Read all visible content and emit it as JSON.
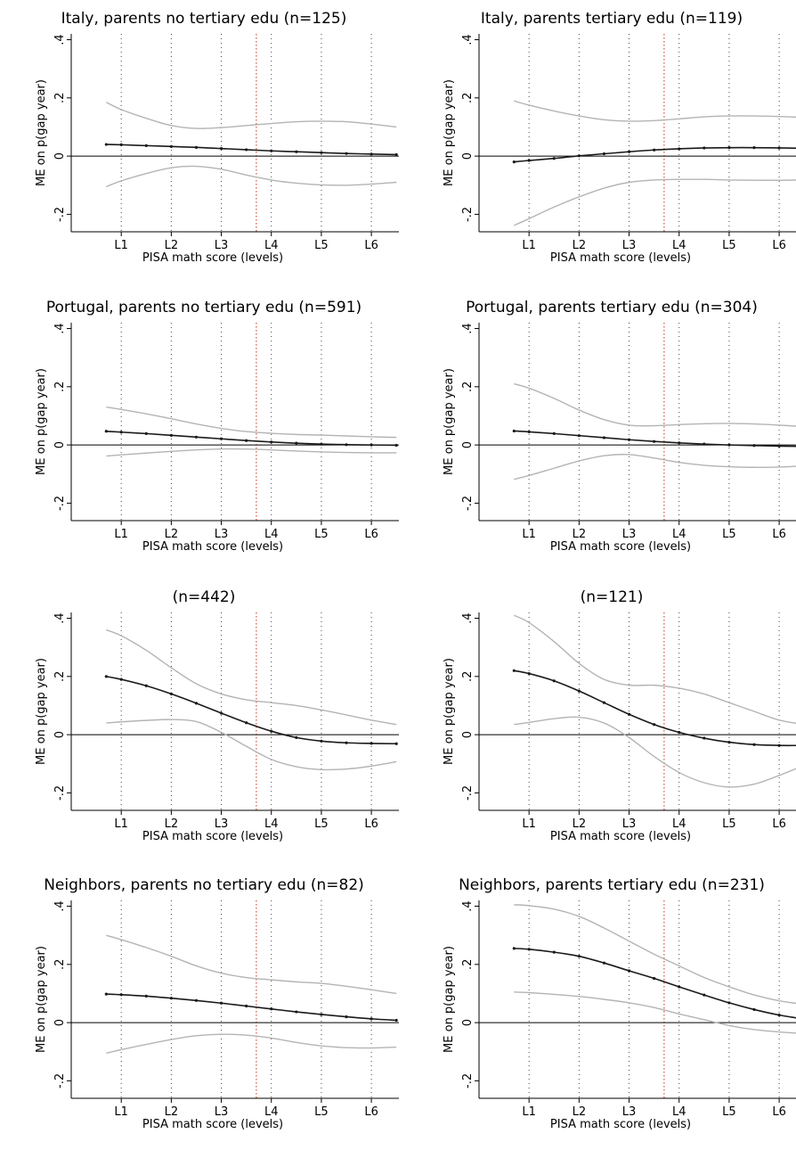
{
  "colors": {
    "estimate": "#1a1a1a",
    "ci": "#b4b4b4",
    "zero_line": "#000000",
    "grid": "#444444",
    "threshold": "#d2523a"
  },
  "chart_data": [
    {
      "type": "line",
      "title": "Italy, parents no tertiary edu (n=125)",
      "xlabel": "PISA math score (levels)",
      "ylabel": "ME on p(gap year)",
      "x_ticks": [
        "L1",
        "L2",
        "L3",
        "L4",
        "L5",
        "L6"
      ],
      "y_ticks": [
        ".4",
        ".2",
        "0",
        "-.2"
      ],
      "ylim": [
        -0.26,
        0.42
      ],
      "xlim": [
        0.0,
        6.55
      ],
      "grid_x": [
        1,
        2,
        3,
        4,
        5,
        6
      ],
      "threshold_x": 3.7,
      "x": [
        0.7,
        1.0,
        1.5,
        2.0,
        2.5,
        3.0,
        3.5,
        4.0,
        4.5,
        5.0,
        5.5,
        6.0,
        6.5
      ],
      "series": [
        {
          "role": "estimate",
          "values": [
            0.04,
            0.039,
            0.036,
            0.033,
            0.03,
            0.026,
            0.022,
            0.018,
            0.015,
            0.012,
            0.009,
            0.007,
            0.005
          ]
        },
        {
          "role": "upper_ci",
          "values": [
            0.185,
            0.16,
            0.13,
            0.105,
            0.095,
            0.098,
            0.105,
            0.112,
            0.118,
            0.12,
            0.118,
            0.11,
            0.1
          ]
        },
        {
          "role": "lower_ci",
          "values": [
            -0.105,
            -0.085,
            -0.06,
            -0.04,
            -0.035,
            -0.045,
            -0.065,
            -0.082,
            -0.093,
            -0.099,
            -0.1,
            -0.096,
            -0.09
          ]
        }
      ]
    },
    {
      "type": "line",
      "title": "Italy, parents tertiary edu (n=119)",
      "xlabel": "PISA math score (levels)",
      "ylabel": "ME on p(gap year)",
      "x_ticks": [
        "L1",
        "L2",
        "L3",
        "L4",
        "L5",
        "L6"
      ],
      "y_ticks": [
        ".4",
        ".2",
        "0",
        "-.2"
      ],
      "ylim": [
        -0.26,
        0.42
      ],
      "xlim": [
        0.0,
        6.55
      ],
      "grid_x": [
        1,
        2,
        3,
        4,
        5,
        6
      ],
      "threshold_x": 3.7,
      "x": [
        0.7,
        1.0,
        1.5,
        2.0,
        2.5,
        3.0,
        3.5,
        4.0,
        4.5,
        5.0,
        5.5,
        6.0,
        6.5
      ],
      "series": [
        {
          "role": "estimate",
          "values": [
            -0.02,
            -0.015,
            -0.008,
            0.001,
            0.008,
            0.015,
            0.021,
            0.025,
            0.028,
            0.029,
            0.029,
            0.028,
            0.027
          ]
        },
        {
          "role": "upper_ci",
          "values": [
            0.19,
            0.175,
            0.155,
            0.138,
            0.125,
            0.12,
            0.122,
            0.128,
            0.135,
            0.138,
            0.138,
            0.136,
            0.133
          ]
        },
        {
          "role": "lower_ci",
          "values": [
            -0.238,
            -0.215,
            -0.175,
            -0.14,
            -0.11,
            -0.09,
            -0.082,
            -0.08,
            -0.08,
            -0.082,
            -0.083,
            -0.083,
            -0.082
          ]
        }
      ]
    },
    {
      "type": "line",
      "title": "Portugal, parents no tertiary edu (n=591)",
      "xlabel": "PISA math score (levels)",
      "ylabel": "ME on p(gap year)",
      "x_ticks": [
        "L1",
        "L2",
        "L3",
        "L4",
        "L5",
        "L6"
      ],
      "y_ticks": [
        ".4",
        ".2",
        "0",
        "-.2"
      ],
      "ylim": [
        -0.26,
        0.42
      ],
      "xlim": [
        0.0,
        6.55
      ],
      "grid_x": [
        1,
        2,
        3,
        4,
        5,
        6
      ],
      "threshold_x": 3.7,
      "x": [
        0.7,
        1.0,
        1.5,
        2.0,
        2.5,
        3.0,
        3.5,
        4.0,
        4.5,
        5.0,
        5.5,
        6.0,
        6.5
      ],
      "series": [
        {
          "role": "estimate",
          "values": [
            0.047,
            0.044,
            0.039,
            0.033,
            0.027,
            0.021,
            0.015,
            0.01,
            0.006,
            0.003,
            0.001,
            0.0,
            -0.001
          ]
        },
        {
          "role": "upper_ci",
          "values": [
            0.13,
            0.122,
            0.107,
            0.09,
            0.072,
            0.057,
            0.046,
            0.04,
            0.036,
            0.034,
            0.031,
            0.028,
            0.026
          ]
        },
        {
          "role": "lower_ci",
          "values": [
            -0.038,
            -0.034,
            -0.028,
            -0.022,
            -0.017,
            -0.014,
            -0.014,
            -0.017,
            -0.021,
            -0.024,
            -0.026,
            -0.027,
            -0.027
          ]
        }
      ]
    },
    {
      "type": "line",
      "title": "Portugal, parents tertiary edu (n=304)",
      "xlabel": "PISA math score (levels)",
      "ylabel": "ME on p(gap year)",
      "x_ticks": [
        "L1",
        "L2",
        "L3",
        "L4",
        "L5",
        "L6"
      ],
      "y_ticks": [
        ".4",
        ".2",
        "0",
        "-.2"
      ],
      "ylim": [
        -0.26,
        0.42
      ],
      "xlim": [
        0.0,
        6.55
      ],
      "grid_x": [
        1,
        2,
        3,
        4,
        5,
        6
      ],
      "threshold_x": 3.7,
      "x": [
        0.7,
        1.0,
        1.5,
        2.0,
        2.5,
        3.0,
        3.5,
        4.0,
        4.5,
        5.0,
        5.5,
        6.0,
        6.5
      ],
      "series": [
        {
          "role": "estimate",
          "values": [
            0.048,
            0.045,
            0.039,
            0.032,
            0.025,
            0.018,
            0.012,
            0.007,
            0.003,
            0.0,
            -0.002,
            -0.004,
            -0.005
          ]
        },
        {
          "role": "upper_ci",
          "values": [
            0.21,
            0.195,
            0.16,
            0.12,
            0.087,
            0.068,
            0.066,
            0.07,
            0.073,
            0.074,
            0.072,
            0.068,
            0.063
          ]
        },
        {
          "role": "lower_ci",
          "values": [
            -0.118,
            -0.105,
            -0.08,
            -0.055,
            -0.037,
            -0.033,
            -0.045,
            -0.06,
            -0.07,
            -0.075,
            -0.077,
            -0.076,
            -0.072
          ]
        }
      ]
    },
    {
      "type": "line",
      "title": "(n=442)",
      "xlabel": "PISA math score (levels)",
      "ylabel": "ME on p(gap year)",
      "x_ticks": [
        "L1",
        "L2",
        "L3",
        "L4",
        "L5",
        "L6"
      ],
      "y_ticks": [
        ".4",
        ".2",
        "0",
        "-.2"
      ],
      "ylim": [
        -0.26,
        0.42
      ],
      "xlim": [
        0.0,
        6.55
      ],
      "grid_x": [
        1,
        2,
        3,
        4,
        5,
        6
      ],
      "threshold_x": 3.7,
      "x": [
        0.7,
        1.0,
        1.5,
        2.0,
        2.5,
        3.0,
        3.5,
        4.0,
        4.5,
        5.0,
        5.5,
        6.0,
        6.5
      ],
      "series": [
        {
          "role": "estimate",
          "values": [
            0.2,
            0.19,
            0.168,
            0.14,
            0.108,
            0.074,
            0.041,
            0.012,
            -0.01,
            -0.022,
            -0.028,
            -0.03,
            -0.031
          ]
        },
        {
          "role": "upper_ci",
          "values": [
            0.36,
            0.34,
            0.29,
            0.23,
            0.175,
            0.14,
            0.12,
            0.11,
            0.1,
            0.085,
            0.068,
            0.05,
            0.035
          ]
        },
        {
          "role": "lower_ci",
          "values": [
            0.04,
            0.044,
            0.049,
            0.052,
            0.045,
            0.008,
            -0.04,
            -0.085,
            -0.11,
            -0.12,
            -0.118,
            -0.108,
            -0.093
          ]
        }
      ]
    },
    {
      "type": "line",
      "title": "(n=121)",
      "xlabel": "PISA math score (levels)",
      "ylabel": "ME on p(gap year)",
      "x_ticks": [
        "L1",
        "L2",
        "L3",
        "L4",
        "L5",
        "L6"
      ],
      "y_ticks": [
        ".4",
        ".2",
        "0",
        "-.2"
      ],
      "ylim": [
        -0.26,
        0.42
      ],
      "xlim": [
        0.0,
        6.55
      ],
      "grid_x": [
        1,
        2,
        3,
        4,
        5,
        6
      ],
      "threshold_x": 3.7,
      "x": [
        0.7,
        1.0,
        1.5,
        2.0,
        2.5,
        3.0,
        3.5,
        4.0,
        4.5,
        5.0,
        5.5,
        6.0,
        6.5
      ],
      "series": [
        {
          "role": "estimate",
          "values": [
            0.22,
            0.21,
            0.185,
            0.15,
            0.11,
            0.07,
            0.035,
            0.008,
            -0.012,
            -0.026,
            -0.034,
            -0.037,
            -0.037
          ]
        },
        {
          "role": "upper_ci",
          "values": [
            0.41,
            0.385,
            0.32,
            0.245,
            0.19,
            0.17,
            0.17,
            0.16,
            0.14,
            0.11,
            0.08,
            0.05,
            0.035
          ]
        },
        {
          "role": "lower_ci",
          "values": [
            0.035,
            0.042,
            0.055,
            0.06,
            0.04,
            -0.01,
            -0.075,
            -0.13,
            -0.165,
            -0.18,
            -0.17,
            -0.14,
            -0.105
          ]
        }
      ]
    },
    {
      "type": "line",
      "title": "Neighbors, parents no tertiary edu (n=82)",
      "xlabel": "PISA math score (levels)",
      "ylabel": "ME on p(gap year)",
      "x_ticks": [
        "L1",
        "L2",
        "L3",
        "L4",
        "L5",
        "L6"
      ],
      "y_ticks": [
        ".4",
        ".2",
        "0",
        "-.2"
      ],
      "ylim": [
        -0.26,
        0.42
      ],
      "xlim": [
        0.0,
        6.55
      ],
      "grid_x": [
        1,
        2,
        3,
        4,
        5,
        6
      ],
      "threshold_x": 3.7,
      "x": [
        0.7,
        1.0,
        1.5,
        2.0,
        2.5,
        3.0,
        3.5,
        4.0,
        4.5,
        5.0,
        5.5,
        6.0,
        6.5
      ],
      "series": [
        {
          "role": "estimate",
          "values": [
            0.098,
            0.096,
            0.091,
            0.084,
            0.076,
            0.067,
            0.057,
            0.047,
            0.037,
            0.028,
            0.02,
            0.013,
            0.008
          ]
        },
        {
          "role": "upper_ci",
          "values": [
            0.3,
            0.285,
            0.258,
            0.228,
            0.195,
            0.17,
            0.155,
            0.147,
            0.14,
            0.135,
            0.125,
            0.113,
            0.1
          ]
        },
        {
          "role": "lower_ci",
          "values": [
            -0.105,
            -0.093,
            -0.075,
            -0.058,
            -0.045,
            -0.04,
            -0.043,
            -0.053,
            -0.068,
            -0.08,
            -0.086,
            -0.087,
            -0.084
          ]
        }
      ]
    },
    {
      "type": "line",
      "title": "Neighbors, parents tertiary edu (n=231)",
      "xlabel": "PISA math score (levels)",
      "ylabel": "ME on p(gap year)",
      "x_ticks": [
        "L1",
        "L2",
        "L3",
        "L4",
        "L5",
        "L6"
      ],
      "y_ticks": [
        ".4",
        ".2",
        "0",
        "-.2"
      ],
      "ylim": [
        -0.26,
        0.42
      ],
      "xlim": [
        0.0,
        6.55
      ],
      "grid_x": [
        1,
        2,
        3,
        4,
        5,
        6
      ],
      "threshold_x": 3.7,
      "x": [
        0.7,
        1.0,
        1.5,
        2.0,
        2.5,
        3.0,
        3.5,
        4.0,
        4.5,
        5.0,
        5.5,
        6.0,
        6.5
      ],
      "series": [
        {
          "role": "estimate",
          "values": [
            0.255,
            0.252,
            0.242,
            0.228,
            0.205,
            0.178,
            0.152,
            0.123,
            0.095,
            0.068,
            0.045,
            0.026,
            0.012
          ]
        },
        {
          "role": "upper_ci",
          "values": [
            0.405,
            0.402,
            0.39,
            0.365,
            0.325,
            0.28,
            0.235,
            0.195,
            0.155,
            0.123,
            0.095,
            0.075,
            0.063
          ]
        },
        {
          "role": "lower_ci",
          "values": [
            0.105,
            0.103,
            0.097,
            0.09,
            0.08,
            0.068,
            0.052,
            0.03,
            0.01,
            -0.01,
            -0.024,
            -0.032,
            -0.038
          ]
        }
      ]
    }
  ]
}
